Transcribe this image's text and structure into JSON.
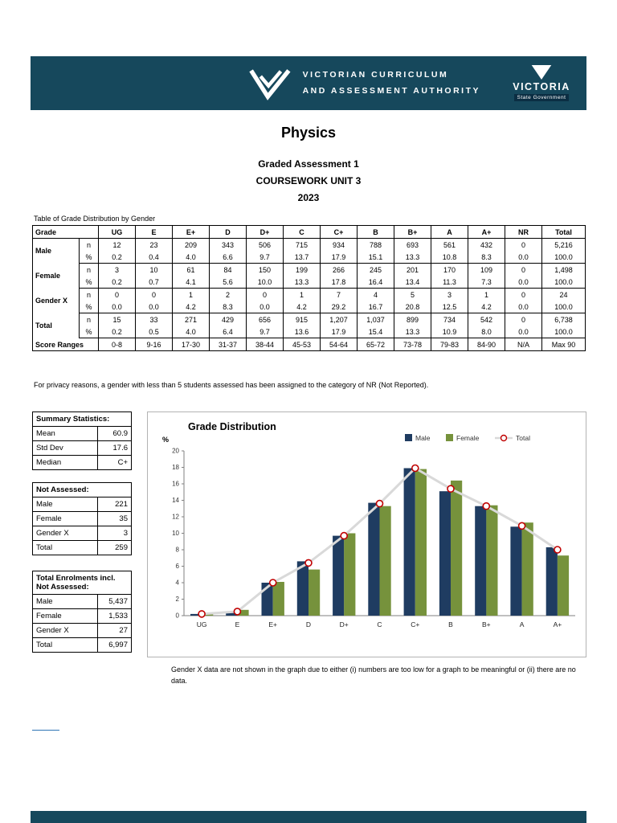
{
  "banner": {
    "vcaa_line1": "VICTORIAN CURRICULUM",
    "vcaa_line2": "AND ASSESSMENT AUTHORITY",
    "victoria_title": "VICTORIA",
    "victoria_subtitle": "State Government",
    "background_color": "#16485c"
  },
  "title": "Physics",
  "subtitle1": "Graded Assessment 1",
  "subtitle2": "COURSEWORK UNIT 3",
  "year": "2023",
  "table_caption": "Table of Grade Distribution by Gender",
  "grade_table": {
    "grade_header": "Grade",
    "n_label": "n",
    "pct_label": "%",
    "columns": [
      "UG",
      "E",
      "E+",
      "D",
      "D+",
      "C",
      "C+",
      "B",
      "B+",
      "A",
      "A+",
      "NR",
      "Total"
    ],
    "rows": [
      {
        "label": "Male",
        "n": [
          "12",
          "23",
          "209",
          "343",
          "506",
          "715",
          "934",
          "788",
          "693",
          "561",
          "432",
          "0",
          "5,216"
        ],
        "pct": [
          "0.2",
          "0.4",
          "4.0",
          "6.6",
          "9.7",
          "13.7",
          "17.9",
          "15.1",
          "13.3",
          "10.8",
          "8.3",
          "0.0",
          "100.0"
        ]
      },
      {
        "label": "Female",
        "n": [
          "3",
          "10",
          "61",
          "84",
          "150",
          "199",
          "266",
          "245",
          "201",
          "170",
          "109",
          "0",
          "1,498"
        ],
        "pct": [
          "0.2",
          "0.7",
          "4.1",
          "5.6",
          "10.0",
          "13.3",
          "17.8",
          "16.4",
          "13.4",
          "11.3",
          "7.3",
          "0.0",
          "100.0"
        ]
      },
      {
        "label": "Gender X",
        "n": [
          "0",
          "0",
          "1",
          "2",
          "0",
          "1",
          "7",
          "4",
          "5",
          "3",
          "1",
          "0",
          "24"
        ],
        "pct": [
          "0.0",
          "0.0",
          "4.2",
          "8.3",
          "0.0",
          "4.2",
          "29.2",
          "16.7",
          "20.8",
          "12.5",
          "4.2",
          "0.0",
          "100.0"
        ]
      },
      {
        "label": "Total",
        "n": [
          "15",
          "33",
          "271",
          "429",
          "656",
          "915",
          "1,207",
          "1,037",
          "899",
          "734",
          "542",
          "0",
          "6,738"
        ],
        "pct": [
          "0.2",
          "0.5",
          "4.0",
          "6.4",
          "9.7",
          "13.6",
          "17.9",
          "15.4",
          "13.3",
          "10.9",
          "8.0",
          "0.0",
          "100.0"
        ]
      }
    ],
    "score_ranges_label": "Score Ranges",
    "score_ranges": [
      "0-8",
      "9-16",
      "17-30",
      "31-37",
      "38-44",
      "45-53",
      "54-64",
      "65-72",
      "73-78",
      "79-83",
      "84-90",
      "N/A",
      "Max 90"
    ]
  },
  "privacy_note": "For privacy reasons, a gender with less than 5 students assessed has been assigned to the category of NR (Not Reported).",
  "summary_statistics": {
    "title": "Summary Statistics:",
    "rows": [
      {
        "label": "Mean",
        "value": "60.9"
      },
      {
        "label": "Std Dev",
        "value": "17.6"
      },
      {
        "label": "Median",
        "value": "C+"
      }
    ]
  },
  "not_assessed": {
    "title": "Not Assessed:",
    "rows": [
      {
        "label": "Male",
        "value": "221"
      },
      {
        "label": "Female",
        "value": "35"
      },
      {
        "label": "Gender X",
        "value": "3"
      },
      {
        "label": "Total",
        "value": "259"
      }
    ]
  },
  "total_enrolments": {
    "title_line1": "Total Enrolments incl.",
    "title_line2": "Not Assessed:",
    "rows": [
      {
        "label": "Male",
        "value": "5,437"
      },
      {
        "label": "Female",
        "value": "1,533"
      },
      {
        "label": "Gender X",
        "value": "27"
      },
      {
        "label": "Total",
        "value": "6,997"
      }
    ]
  },
  "chart_data": {
    "type": "bar",
    "title": "Grade Distribution",
    "ylabel": "%",
    "xlabel": "",
    "categories": [
      "UG",
      "E",
      "E+",
      "D",
      "D+",
      "C",
      "C+",
      "B",
      "B+",
      "A",
      "A+"
    ],
    "series": [
      {
        "name": "Male",
        "type": "bar",
        "color": "#1f3c61",
        "values": [
          0.2,
          0.4,
          4.0,
          6.6,
          9.7,
          13.7,
          17.9,
          15.1,
          13.3,
          10.8,
          8.3
        ]
      },
      {
        "name": "Female",
        "type": "bar",
        "color": "#76923c",
        "values": [
          0.2,
          0.7,
          4.1,
          5.6,
          10.0,
          13.3,
          17.8,
          16.4,
          13.4,
          11.3,
          7.3
        ]
      },
      {
        "name": "Total",
        "type": "line",
        "color": "#d9d9d9",
        "marker_color": "#c00000",
        "values": [
          0.2,
          0.5,
          4.0,
          6.4,
          9.7,
          13.6,
          17.9,
          15.4,
          13.3,
          10.9,
          8.0
        ]
      }
    ],
    "ylim": [
      0,
      20
    ],
    "ytick_step": 2,
    "legend_position": "top-right",
    "grid": false
  },
  "chart_note": "Gender X data are not shown in the graph due to either (i) numbers are too low for a graph to be meaningful or (ii) there are no data."
}
